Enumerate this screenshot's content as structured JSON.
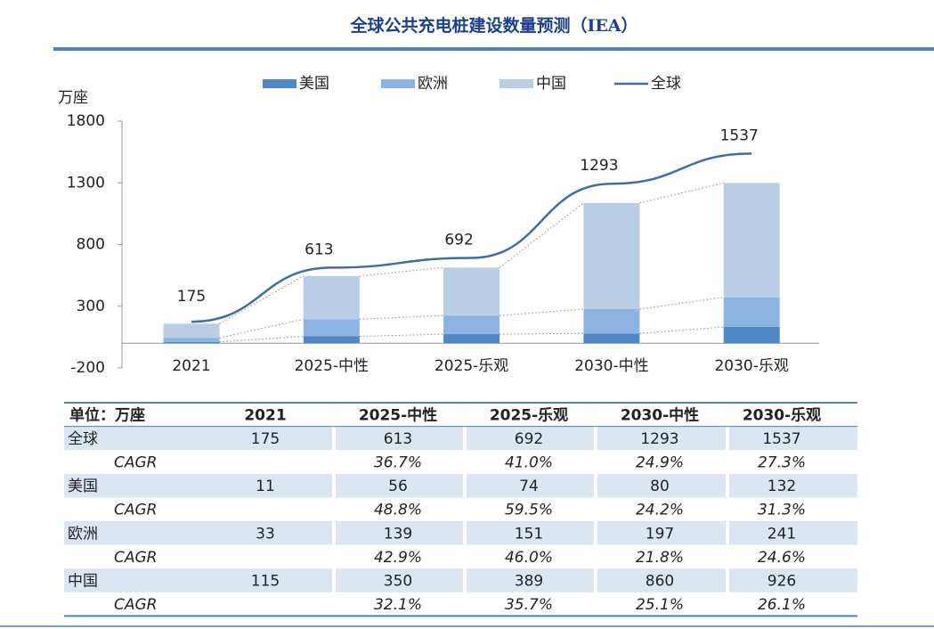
{
  "title": "全球公共充电桩建设数量预测（IEA）",
  "chart_data": {
    "type": "bar",
    "stacked": true,
    "ylabel": "万座",
    "categories": [
      "2021",
      "2025-中性",
      "2025-乐观",
      "2030-中性",
      "2030-乐观"
    ],
    "series": [
      {
        "name": "美国",
        "color": "#4f86c6",
        "values": [
          11,
          56,
          74,
          80,
          132
        ]
      },
      {
        "name": "欧洲",
        "color": "#8db3e2",
        "values": [
          33,
          139,
          151,
          197,
          241
        ]
      },
      {
        "name": "中国",
        "color": "#b9cde5",
        "values": [
          115,
          350,
          389,
          860,
          926
        ]
      },
      {
        "name": "全球",
        "type": "line",
        "color": "#3f6ea6",
        "values": [
          175,
          613,
          692,
          1293,
          1537
        ]
      }
    ],
    "ylim": [
      -200,
      1800
    ],
    "yticks": [
      -200,
      300,
      800,
      1300,
      1800
    ],
    "legend": "top"
  },
  "table": {
    "header": [
      "单位：万座",
      "2021",
      "2025-中性",
      "2025-乐观",
      "2030-中性",
      "2030-乐观"
    ],
    "rows": [
      [
        "全球",
        "175",
        "613",
        "692",
        "1293",
        "1537"
      ],
      [
        "CAGR",
        null,
        "36.7%",
        "41.0%",
        "24.9%",
        "27.3%"
      ],
      [
        "美国",
        "11",
        "56",
        "74",
        "80",
        "132"
      ],
      [
        "CAGR",
        null,
        "48.8%",
        "59.5%",
        "24.2%",
        "31.3%"
      ],
      [
        "欧洲",
        "33",
        "139",
        "151",
        "197",
        "241"
      ],
      [
        "CAGR",
        null,
        "42.9%",
        "46.0%",
        "21.8%",
        "24.6%"
      ],
      [
        "中国",
        "115",
        "350",
        "389",
        "860",
        "926"
      ],
      [
        "CAGR",
        null,
        "32.1%",
        "35.7%",
        "25.1%",
        "26.1%"
      ]
    ]
  }
}
